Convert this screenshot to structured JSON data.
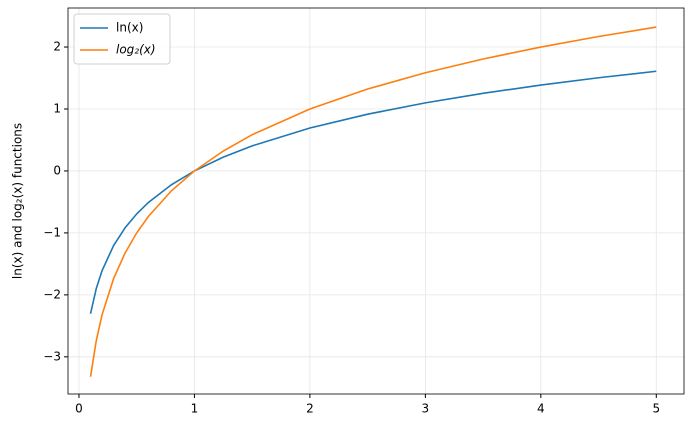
{
  "chart_data": {
    "type": "line",
    "ylabel": "ln(x) and log₂(x) functions",
    "x": [
      0.1,
      0.15,
      0.2,
      0.3,
      0.4,
      0.5,
      0.6,
      0.8,
      1,
      1.25,
      1.5,
      2,
      2.5,
      3,
      3.5,
      4,
      4.5,
      5
    ],
    "series": [
      {
        "name": "ln(x)",
        "color": "#1f77b4",
        "values": [
          -2.303,
          -1.897,
          -1.609,
          -1.204,
          -0.916,
          -0.693,
          -0.511,
          -0.223,
          0,
          0.223,
          0.405,
          0.693,
          0.916,
          1.099,
          1.253,
          1.386,
          1.504,
          1.609
        ]
      },
      {
        "name": "log₂(x)",
        "color": "#ff7f0e",
        "values": [
          -3.322,
          -2.737,
          -2.322,
          -1.737,
          -1.322,
          -1,
          -0.737,
          -0.322,
          0,
          0.322,
          0.585,
          1,
          1.322,
          1.585,
          1.807,
          2,
          2.17,
          2.322
        ]
      }
    ],
    "xlim": [
      -0.095,
      5.24
    ],
    "ylim": [
      -3.6,
      2.63
    ],
    "xticks": [
      0,
      1,
      2,
      3,
      4,
      5
    ],
    "yticks": [
      {
        "value": -3,
        "label": "−3"
      },
      {
        "value": -2,
        "label": "−2"
      },
      {
        "value": -1,
        "label": "−1"
      },
      0,
      1,
      2
    ],
    "grid": true,
    "legend": "upper left"
  }
}
